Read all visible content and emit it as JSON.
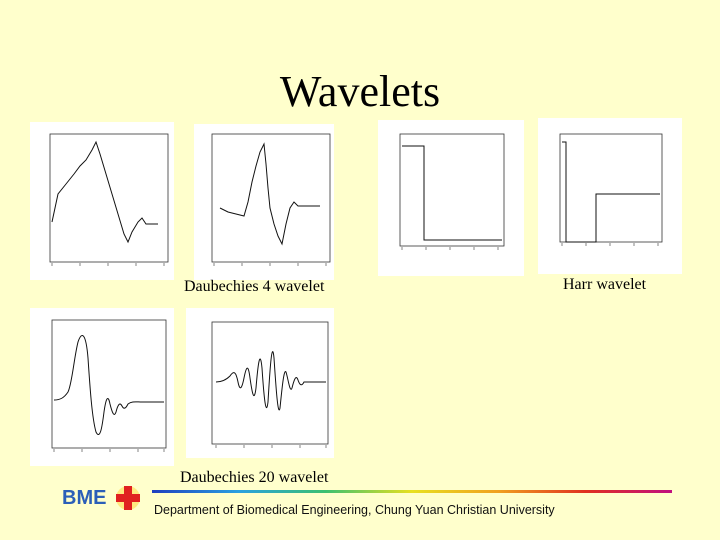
{
  "slide": {
    "title": "Wavelets",
    "captions": {
      "daubechies4": "Daubechies 4 wavelet",
      "harr": "Harr wavelet",
      "daubechies20": "Daubechies 20 wavelet"
    },
    "footer": "Department of Biomedical Engineering, Chung Yuan Christian University",
    "logo_text": "BME"
  },
  "colors": {
    "background": "#ffffcc",
    "logo_blue": "#2b5fb8",
    "logo_red": "#e02020"
  }
}
